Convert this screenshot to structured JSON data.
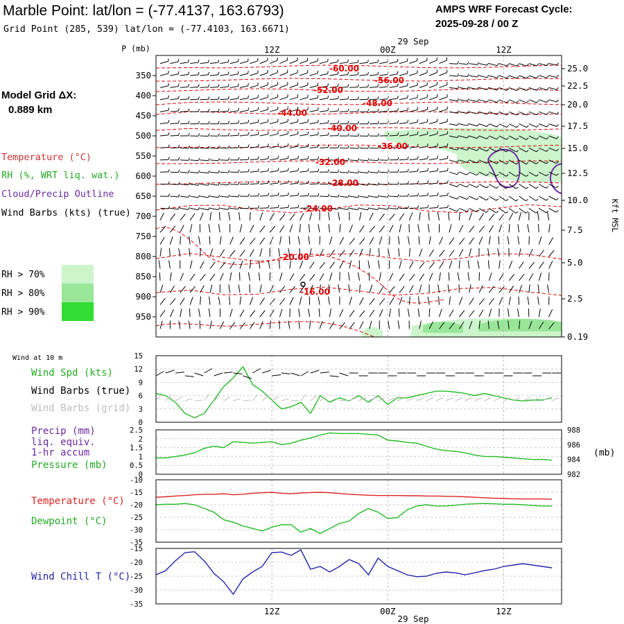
{
  "header": {
    "title": "Marble Point:  lat/lon = (-77.4137, 163.6793)",
    "subtitle": "Grid Point (285, 539) lat/lon = (-77.4103, 163.6671)",
    "cycle_label": "AMPS WRF Forecast Cycle:",
    "cycle_value": "2025-09-28 / 00  Z"
  },
  "model": {
    "label": "Model Grid ΔX:",
    "value": "0.889 km"
  },
  "time_axis": {
    "date_label": "29 Sep",
    "ticks": [
      "12Z",
      "00Z",
      "12Z"
    ],
    "tick_hours": [
      12,
      24,
      36
    ]
  },
  "legend": {
    "temperature": "Temperature (°C)",
    "rh": "RH (%, WRT liq. wat.)",
    "cloud": "Cloud/Precip Outline",
    "wind": "Wind Barbs (kts) (true)",
    "rh70": "RH > 70%",
    "rh80": "RH > 80%",
    "rh90": "RH > 90%"
  },
  "colors": {
    "temperature": "#e00000",
    "rh70": "#ccf5cc",
    "rh80": "#99e699",
    "rh90": "#33dd33",
    "cloud": "#6a2aa0",
    "green_line": "#22bb22",
    "red_line": "#dd2222",
    "blue_line": "#2222aa",
    "grid_barb": "#bbbbbb"
  },
  "chart_data": [
    {
      "type": "line",
      "name": "profile",
      "ylabel": "P (mb)",
      "y2label": "Kft MSL",
      "pressure_ticks": [
        350,
        400,
        450,
        500,
        550,
        600,
        650,
        700,
        750,
        800,
        850,
        900,
        950
      ],
      "height_ticks": [
        "25.0",
        "22.5",
        "20.0",
        "17.5",
        "15.0",
        "12.5",
        "10.0",
        "7.5",
        "5.0",
        "2.5",
        "0.19"
      ],
      "temperature_labels": [
        "-60.00",
        "-56.00",
        "-52.00",
        "-48.00",
        "-44.00",
        "-40.00",
        "-36.00",
        "-32.00",
        "-28.00",
        "-24.00",
        "-20.00",
        "-16.00"
      ]
    },
    {
      "type": "line",
      "name": "wind",
      "title": "Wind at 10 m",
      "labels": [
        "Wind Spd (kts)",
        "Wind Barbs (true)",
        "Wind Barbs (grid)"
      ],
      "ylim": [
        0,
        15
      ],
      "yticks": [
        0,
        3,
        6,
        9,
        12,
        15
      ],
      "x": [
        0,
        1,
        2,
        3,
        4,
        5,
        6,
        7,
        8,
        9,
        10,
        11,
        12,
        13,
        14,
        15,
        16,
        17,
        18,
        19,
        20,
        21,
        22,
        23,
        24,
        25,
        26,
        27,
        28,
        29,
        30,
        31,
        32,
        33,
        34,
        35,
        36,
        37,
        38,
        39,
        40,
        41
      ],
      "series": [
        {
          "name": "Wind Spd (kts)",
          "values": [
            6.5,
            6,
            4.5,
            2,
            1,
            2,
            5,
            8,
            10,
            12.5,
            8.5,
            7,
            5,
            3,
            3.5,
            4.5,
            2,
            6,
            4.5,
            5.5,
            4.8,
            6,
            4.5,
            6,
            4,
            5.5,
            5.5,
            6,
            6.5,
            7,
            7,
            6.8,
            6.5,
            6,
            6.5,
            6,
            5.5,
            5,
            4.8,
            5,
            5,
            5.5
          ]
        }
      ]
    },
    {
      "type": "line",
      "name": "pressure",
      "labels": [
        "Precip (mm)",
        "liq. equiv.",
        "1-hr accum",
        "Pressure (mb)"
      ],
      "ylim": [
        0,
        2.5
      ],
      "yticks": [
        0.0,
        0.5,
        1.0,
        1.5,
        2.0,
        2.5
      ],
      "y2lim": [
        982,
        988
      ],
      "y2ticks": [
        982,
        984,
        986,
        988
      ],
      "y2label": "(mb)",
      "x": [
        0,
        1,
        2,
        3,
        4,
        5,
        6,
        7,
        8,
        9,
        10,
        11,
        12,
        13,
        14,
        15,
        16,
        17,
        18,
        19,
        20,
        21,
        22,
        23,
        24,
        25,
        26,
        27,
        28,
        29,
        30,
        31,
        32,
        33,
        34,
        35,
        36,
        37,
        38,
        39,
        40,
        41
      ],
      "series": [
        {
          "name": "Pressure (mb)",
          "values": [
            984.2,
            984.2,
            984.4,
            984.6,
            984.9,
            985.5,
            985.8,
            985.6,
            986.4,
            986.3,
            986.2,
            986.3,
            986.4,
            986.0,
            986.2,
            986.6,
            986.9,
            987.3,
            987.6,
            987.5,
            987.5,
            987.5,
            987.4,
            987.3,
            986.6,
            986.5,
            986.3,
            986.2,
            985.8,
            985.4,
            985.2,
            985.1,
            984.9,
            984.6,
            984.4,
            984.4,
            984.3,
            984.2,
            984.1,
            984.0,
            984.0,
            983.9
          ]
        }
      ]
    },
    {
      "type": "line",
      "name": "temperature",
      "labels": [
        "Temperature (°C)",
        "Dewpoint (°C)"
      ],
      "ylim": [
        -35,
        -10
      ],
      "yticks": [
        -35,
        -30,
        -25,
        -20,
        -15,
        -10
      ],
      "x": [
        0,
        1,
        2,
        3,
        4,
        5,
        6,
        7,
        8,
        9,
        10,
        11,
        12,
        13,
        14,
        15,
        16,
        17,
        18,
        19,
        20,
        21,
        22,
        23,
        24,
        25,
        26,
        27,
        28,
        29,
        30,
        31,
        32,
        33,
        34,
        35,
        36,
        37,
        38,
        39,
        40,
        41
      ],
      "series": [
        {
          "name": "Temperature (°C)",
          "values": [
            -17,
            -16.8,
            -16.5,
            -16.3,
            -16,
            -15.8,
            -15.8,
            -15.6,
            -16,
            -15.8,
            -15.4,
            -15.2,
            -15,
            -15.4,
            -15.6,
            -15.3,
            -15.1,
            -15,
            -15.2,
            -15.5,
            -15.8,
            -16,
            -16.2,
            -16.3,
            -16.3,
            -16.3,
            -16.4,
            -16.4,
            -16.5,
            -16.5,
            -16.6,
            -16.7,
            -16.8,
            -17,
            -17.2,
            -17.4,
            -17.5,
            -17.6,
            -17.7,
            -17.7,
            -17.7,
            -17.8
          ]
        },
        {
          "name": "Dewpoint (°C)",
          "values": [
            -20,
            -19.8,
            -19.8,
            -19.5,
            -20,
            -21.5,
            -23,
            -26,
            -27,
            -28.5,
            -29.5,
            -30.5,
            -29,
            -28,
            -28,
            -31,
            -29.5,
            -31.5,
            -29.5,
            -27.5,
            -26.5,
            -23.5,
            -21.5,
            -23,
            -25.5,
            -25.2,
            -22,
            -20.5,
            -20,
            -20.5,
            -20.5,
            -20.2,
            -19.8,
            -19.6,
            -19.5,
            -19.6,
            -19.8,
            -19.8,
            -20,
            -20.3,
            -20.5,
            -20.5
          ]
        }
      ]
    },
    {
      "type": "line",
      "name": "windchill",
      "labels": [
        "Wind Chill T (°C)"
      ],
      "ylim": [
        -35,
        -15
      ],
      "yticks": [
        -35,
        -30,
        -25,
        -20,
        -15
      ],
      "x": [
        0,
        1,
        2,
        3,
        4,
        5,
        6,
        7,
        8,
        9,
        10,
        11,
        12,
        13,
        14,
        15,
        16,
        17,
        18,
        19,
        20,
        21,
        22,
        23,
        24,
        25,
        26,
        27,
        28,
        29,
        30,
        31,
        32,
        33,
        34,
        35,
        36,
        37,
        38,
        39,
        40,
        41
      ],
      "series": [
        {
          "name": "Wind Chill T (°C)",
          "values": [
            -24.5,
            -23,
            -19.5,
            -16.5,
            -16.2,
            -19.5,
            -24,
            -27,
            -31.5,
            -26,
            -23.5,
            -21.5,
            -16.5,
            -16.3,
            -17.5,
            -15.5,
            -22.5,
            -21.5,
            -23.5,
            -21.5,
            -19,
            -20.5,
            -24.5,
            -18.5,
            -21.5,
            -23,
            -24.5,
            -25.2,
            -25,
            -24,
            -23.5,
            -23.8,
            -24.5,
            -23.8,
            -23,
            -22.5,
            -21.5,
            -21,
            -20.5,
            -21,
            -21.5,
            -22
          ]
        }
      ]
    }
  ]
}
